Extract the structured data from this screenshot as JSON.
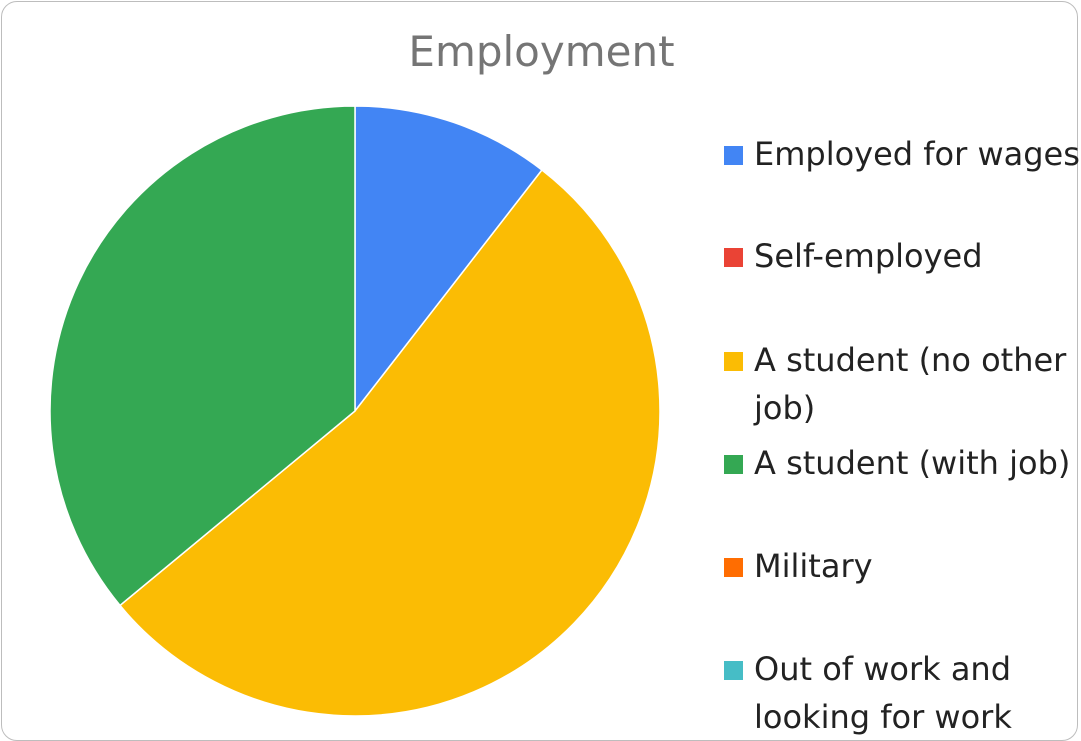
{
  "chart_data": {
    "type": "pie",
    "title": "Employment",
    "legend_position": "right",
    "series": [
      {
        "name": "Employed for wages",
        "value": 10.5,
        "color": "#4285F4"
      },
      {
        "name": "Self-employed",
        "value": 0,
        "color": "#EA4335"
      },
      {
        "name": "A student (no other job)",
        "value": 53.5,
        "color": "#FBBC04"
      },
      {
        "name": "A student (with job)",
        "value": 36,
        "color": "#34A853"
      },
      {
        "name": "Military",
        "value": 0,
        "color": "#FF6D01"
      },
      {
        "name": "Out of work and looking for work",
        "value": 0,
        "color": "#46BDC6"
      }
    ]
  }
}
